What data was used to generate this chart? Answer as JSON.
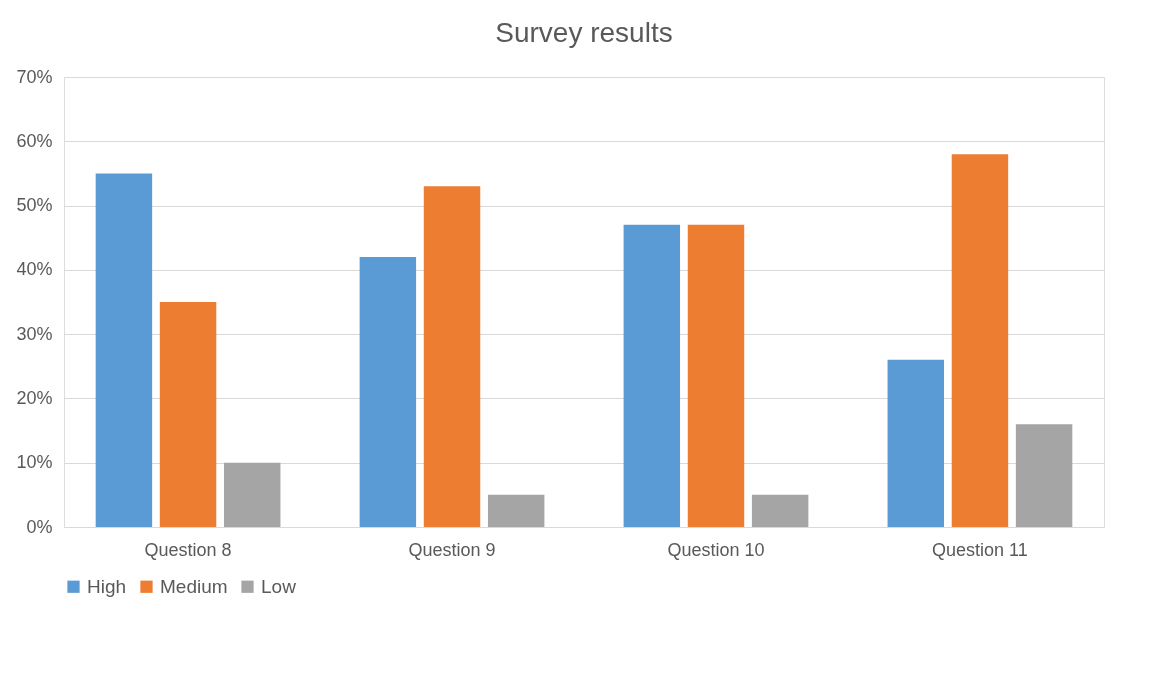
{
  "chart_data": {
    "type": "bar",
    "title": "Survey results",
    "categories": [
      "Question 8",
      "Question 9",
      "Question 10",
      "Question 11"
    ],
    "series": [
      {
        "name": "High",
        "color": "#5b9bd5",
        "values": [
          55,
          42,
          47,
          26
        ]
      },
      {
        "name": "Medium",
        "color": "#ed7d31",
        "values": [
          35,
          53,
          47,
          58
        ]
      },
      {
        "name": "Low",
        "color": "#a5a5a5",
        "values": [
          10,
          5,
          5,
          16
        ]
      }
    ],
    "ylim": [
      0,
      70
    ],
    "yticks": [
      {
        "value": 0,
        "label": "0%"
      },
      {
        "value": 10,
        "label": "10%"
      },
      {
        "value": 20,
        "label": "20%"
      },
      {
        "value": 30,
        "label": "30%"
      },
      {
        "value": 40,
        "label": "40%"
      },
      {
        "value": 50,
        "label": "50%"
      },
      {
        "value": 60,
        "label": "60%"
      },
      {
        "value": 70,
        "label": "70%"
      }
    ],
    "grid": "y",
    "legend": "bottom"
  }
}
